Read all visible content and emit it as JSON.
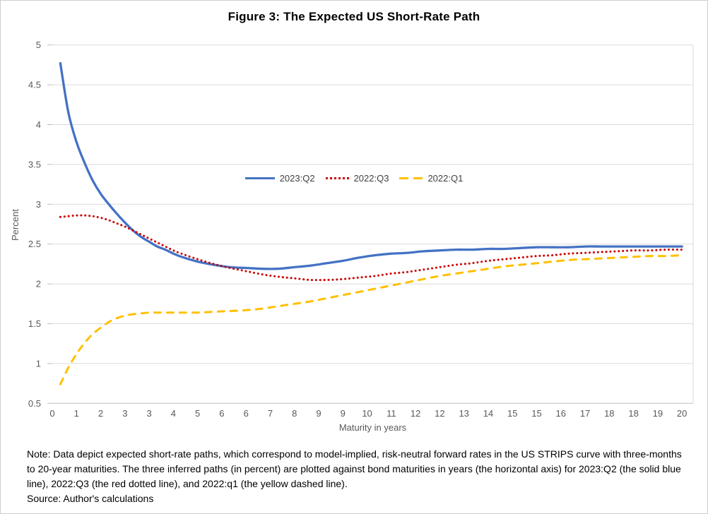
{
  "figure_title": "Figure 3: The Expected US Short-Rate Path",
  "note": "Note: Data depict expected short-rate paths, which correspond to model-implied, risk-neutral forward rates in the US STRIPS curve with three-months to 20-year maturities. The three inferred paths (in percent) are plotted against bond maturities in years (the horizontal axis) for 2023:Q2 (the solid blue line), 2022:Q3 (the red dotted line), and 2022:q1 (the yellow dashed line).",
  "source": "Source: Author's calculations",
  "chart_data": {
    "type": "line",
    "title": "Figure 3: The Expected US Short-Rate Path",
    "xlabel": "Maturity in years",
    "ylabel": "Percent",
    "ylim": [
      0.5,
      5
    ],
    "grid": "horizontal",
    "legend_position": "inside-top-center",
    "ytick_labels": [
      "5",
      "4.5",
      "4",
      "3.5",
      "3",
      "2.5",
      "2",
      "1.5",
      "1",
      "0.5"
    ],
    "xtick_labels": [
      "0",
      "1",
      "2",
      "3",
      "3",
      "4",
      "5",
      "6",
      "6",
      "7",
      "8",
      "9",
      "9",
      "10",
      "11",
      "12",
      "12",
      "13",
      "14",
      "15",
      "15",
      "16",
      "17",
      "18",
      "18",
      "19",
      "20"
    ],
    "xtick_interval_years": 0.75,
    "series": [
      {
        "name": "2023:Q2",
        "style": "solid",
        "color": "#4472C4",
        "x": [
          0.25,
          0.5,
          0.75,
          1,
          1.25,
          1.5,
          1.75,
          2,
          2.25,
          2.5,
          2.75,
          3,
          3.25,
          3.5,
          3.75,
          4,
          4.5,
          5,
          5.5,
          6,
          6.5,
          7,
          7.5,
          8,
          8.5,
          9,
          9.5,
          10,
          10.5,
          11,
          11.5,
          12,
          12.5,
          13,
          13.5,
          14,
          14.5,
          15,
          15.5,
          16,
          16.5,
          17,
          17.5,
          18,
          18.5,
          19,
          19.5
        ],
        "y": [
          4.77,
          4.15,
          3.78,
          3.52,
          3.3,
          3.13,
          3.0,
          2.88,
          2.77,
          2.67,
          2.59,
          2.53,
          2.47,
          2.43,
          2.38,
          2.34,
          2.28,
          2.24,
          2.21,
          2.2,
          2.19,
          2.19,
          2.21,
          2.23,
          2.26,
          2.29,
          2.33,
          2.36,
          2.38,
          2.39,
          2.41,
          2.42,
          2.43,
          2.43,
          2.44,
          2.44,
          2.45,
          2.46,
          2.46,
          2.46,
          2.47,
          2.47,
          2.47,
          2.47,
          2.47,
          2.47,
          2.47
        ]
      },
      {
        "name": "2022:Q3",
        "style": "dotted",
        "color": "#CC0000",
        "x": [
          0.25,
          0.5,
          0.75,
          1,
          1.25,
          1.5,
          1.75,
          2,
          2.25,
          2.5,
          2.75,
          3,
          3.25,
          3.5,
          3.75,
          4,
          4.5,
          5,
          5.5,
          6,
          6.5,
          7,
          7.5,
          8,
          8.5,
          9,
          9.5,
          10,
          10.5,
          11,
          11.5,
          12,
          12.5,
          13,
          13.5,
          14,
          14.5,
          15,
          15.5,
          16,
          16.5,
          17,
          17.5,
          18,
          18.5,
          19,
          19.5
        ],
        "y": [
          2.84,
          2.85,
          2.86,
          2.86,
          2.85,
          2.83,
          2.8,
          2.76,
          2.72,
          2.67,
          2.62,
          2.57,
          2.52,
          2.47,
          2.42,
          2.38,
          2.31,
          2.25,
          2.2,
          2.16,
          2.12,
          2.09,
          2.07,
          2.05,
          2.05,
          2.06,
          2.08,
          2.1,
          2.13,
          2.15,
          2.18,
          2.21,
          2.24,
          2.26,
          2.29,
          2.31,
          2.33,
          2.35,
          2.36,
          2.38,
          2.39,
          2.4,
          2.41,
          2.42,
          2.42,
          2.43,
          2.43
        ]
      },
      {
        "name": "2022:Q1",
        "style": "dashed",
        "color": "#FFC000",
        "x": [
          0.25,
          0.5,
          0.75,
          1,
          1.25,
          1.5,
          1.75,
          2,
          2.25,
          2.5,
          2.75,
          3,
          3.25,
          3.5,
          3.75,
          4,
          4.5,
          5,
          5.5,
          6,
          6.5,
          7,
          7.5,
          8,
          8.5,
          9,
          9.5,
          10,
          10.5,
          11,
          11.5,
          12,
          12.5,
          13,
          13.5,
          14,
          14.5,
          15,
          15.5,
          16,
          16.5,
          17,
          17.5,
          18,
          18.5,
          19,
          19.5
        ],
        "y": [
          0.74,
          0.95,
          1.12,
          1.26,
          1.37,
          1.45,
          1.52,
          1.57,
          1.6,
          1.62,
          1.63,
          1.64,
          1.64,
          1.64,
          1.64,
          1.64,
          1.64,
          1.65,
          1.66,
          1.67,
          1.69,
          1.72,
          1.75,
          1.78,
          1.82,
          1.86,
          1.9,
          1.94,
          1.98,
          2.02,
          2.06,
          2.1,
          2.13,
          2.16,
          2.19,
          2.22,
          2.24,
          2.26,
          2.28,
          2.3,
          2.31,
          2.32,
          2.33,
          2.34,
          2.35,
          2.35,
          2.36
        ]
      }
    ]
  }
}
